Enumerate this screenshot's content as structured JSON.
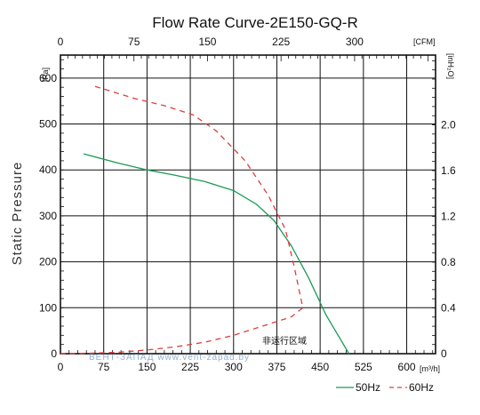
{
  "chart_data": {
    "type": "line",
    "title": "Flow Rate Curve-2E150-GQ-R",
    "ylabel": "Static Pressure",
    "y_unit": "[Pa]",
    "x_unit": "[m³/h]",
    "x2_unit": "[CFM]",
    "y2_unit": "[inH₂O]",
    "xlim": [
      0,
      650
    ],
    "ylim": [
      0,
      650
    ],
    "x_ticks": [
      0,
      75,
      150,
      225,
      300,
      375,
      450,
      525,
      600
    ],
    "y_ticks": [
      0,
      100,
      200,
      300,
      400,
      500,
      600
    ],
    "x2_ticks": [
      0,
      75,
      150,
      225,
      300
    ],
    "y2_ticks": [
      0,
      0.4,
      0.8,
      1.2,
      1.6,
      2.0
    ],
    "grid": true,
    "legend_position": "bottom-right",
    "annotation": "非运行区域",
    "series": [
      {
        "name": "50Hz",
        "color": "#1a9a55",
        "dash": "solid",
        "x": [
          40,
          100,
          150,
          200,
          250,
          300,
          340,
          370,
          400,
          430,
          460,
          500
        ],
        "y": [
          435,
          415,
          400,
          388,
          375,
          355,
          325,
          290,
          235,
          165,
          85,
          0
        ]
      },
      {
        "name": "60Hz",
        "color": "#e03c3c",
        "dash": "dashed",
        "x": [
          60,
          130,
          180,
          230,
          270,
          320,
          360,
          390,
          405,
          415,
          420,
          400,
          350,
          300,
          250,
          200,
          150,
          100,
          50,
          0
        ],
        "y": [
          582,
          555,
          540,
          520,
          485,
          420,
          345,
          270,
          190,
          130,
          100,
          80,
          60,
          40,
          25,
          15,
          8,
          3,
          1,
          0
        ]
      }
    ],
    "watermark": "ВЕНТ-ЗАПАД www.vent-zapad.by"
  }
}
